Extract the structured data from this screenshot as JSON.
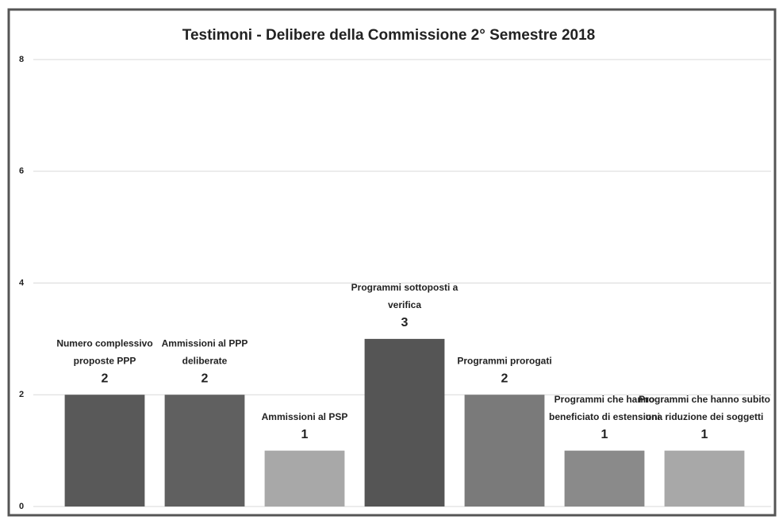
{
  "chart_data": {
    "type": "bar",
    "title": "Testimoni - Delibere della Commissione 2° Semestre 2018",
    "categories": [
      [
        "Numero complessivo",
        "proposte PPP"
      ],
      [
        "Ammissioni al PPP",
        "deliberate"
      ],
      [
        "Ammissioni al PSP"
      ],
      [
        "Programmi sottoposti a",
        "verifica"
      ],
      [
        "Programmi prorogati"
      ],
      [
        "Programmi che hanno",
        "beneficiato di estensioni"
      ],
      [
        "Programmi che hanno subito",
        "una riduzione dei soggetti"
      ]
    ],
    "values": [
      2,
      2,
      1,
      3,
      2,
      1,
      1
    ],
    "colors": [
      "#595959",
      "#606060",
      "#a8a8a8",
      "#555555",
      "#7a7a7a",
      "#8a8a8a",
      "#a8a8a8"
    ],
    "ylim": [
      0,
      8
    ],
    "yticks": [
      0,
      2,
      4,
      6,
      8
    ],
    "grid": true
  }
}
